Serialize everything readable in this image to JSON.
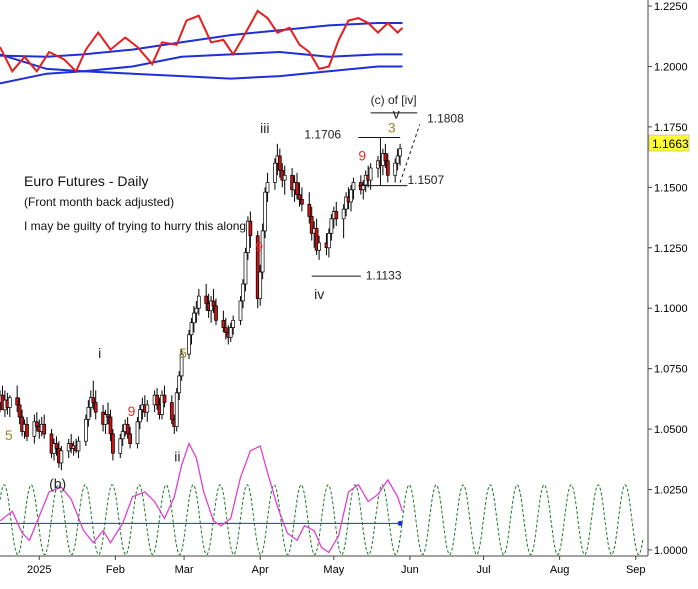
{
  "chart_data": {
    "type": "candlestick",
    "title": "Euro Futures - Daily",
    "subtitle": "(Front month back adjusted)",
    "comment": "I may be guilty of trying to hurry this along",
    "last_price": "1.1663",
    "y_ticks": [
      "1.2250",
      "1.2000",
      "1.1750",
      "1.1500",
      "1.1250",
      "1.1000",
      "1.0750",
      "1.0500",
      "1.0250",
      "1.0000"
    ],
    "y_tick_values": [
      1.225,
      1.2,
      1.175,
      1.15,
      1.125,
      1.1,
      1.075,
      1.05,
      1.025,
      1.0
    ],
    "ylim": [
      0.9975,
      1.2275
    ],
    "x_ticks": [
      "2025",
      "Feb",
      "Mar",
      "Apr",
      "May",
      "Jun",
      "Jul",
      "Aug",
      "Sep"
    ],
    "x_tick_days": [
      2,
      33,
      61,
      92,
      122,
      153,
      183,
      214,
      245
    ],
    "x_range_days": [
      -14,
      250
    ],
    "grid": false,
    "candles": [
      [
        -14,
        1.061,
        1.066,
        1.057,
        1.064
      ],
      [
        -13,
        1.064,
        1.068,
        1.06,
        1.058
      ],
      [
        -12,
        1.058,
        1.066,
        1.055,
        1.062
      ],
      [
        -11,
        1.062,
        1.065,
        1.056,
        1.059
      ],
      [
        -10,
        1.059,
        1.064,
        1.055,
        1.063
      ],
      [
        -7,
        1.063,
        1.068,
        1.057,
        1.06
      ],
      [
        -6,
        1.06,
        1.063,
        1.052,
        1.055
      ],
      [
        -5,
        1.055,
        1.058,
        1.047,
        1.049
      ],
      [
        -4,
        1.049,
        1.054,
        1.046,
        1.052
      ],
      [
        -3,
        1.052,
        1.055,
        1.045,
        1.047
      ],
      [
        0,
        1.047,
        1.056,
        1.044,
        1.053
      ],
      [
        1,
        1.053,
        1.057,
        1.049,
        1.051
      ],
      [
        2,
        1.051,
        1.054,
        1.046,
        1.049
      ],
      [
        3,
        1.049,
        1.055,
        1.047,
        1.052
      ],
      [
        4,
        1.052,
        1.056,
        1.046,
        1.048
      ],
      [
        7,
        1.048,
        1.05,
        1.038,
        1.04
      ],
      [
        8,
        1.04,
        1.046,
        1.037,
        1.044
      ],
      [
        9,
        1.044,
        1.047,
        1.039,
        1.042
      ],
      [
        10,
        1.042,
        1.045,
        1.034,
        1.036
      ],
      [
        11,
        1.036,
        1.043,
        1.033,
        1.041
      ],
      [
        14,
        1.041,
        1.046,
        1.038,
        1.044
      ],
      [
        15,
        1.044,
        1.048,
        1.04,
        1.042
      ],
      [
        16,
        1.042,
        1.045,
        1.039,
        1.043
      ],
      [
        17,
        1.043,
        1.046,
        1.04,
        1.041
      ],
      [
        18,
        1.041,
        1.047,
        1.038,
        1.045
      ],
      [
        21,
        1.045,
        1.056,
        1.043,
        1.054
      ],
      [
        22,
        1.054,
        1.062,
        1.051,
        1.059
      ],
      [
        23,
        1.059,
        1.066,
        1.055,
        1.063
      ],
      [
        24,
        1.063,
        1.07,
        1.058,
        1.061
      ],
      [
        25,
        1.061,
        1.066,
        1.054,
        1.057
      ],
      [
        28,
        1.057,
        1.06,
        1.049,
        1.052
      ],
      [
        29,
        1.052,
        1.058,
        1.048,
        1.056
      ],
      [
        30,
        1.056,
        1.061,
        1.052,
        1.055
      ],
      [
        31,
        1.055,
        1.058,
        1.045,
        1.048
      ],
      [
        32,
        1.048,
        1.05,
        1.037,
        1.04
      ],
      [
        35,
        1.04,
        1.048,
        1.038,
        1.046
      ],
      [
        36,
        1.046,
        1.052,
        1.043,
        1.049
      ],
      [
        37,
        1.049,
        1.054,
        1.047,
        1.052
      ],
      [
        38,
        1.052,
        1.055,
        1.046,
        1.048
      ],
      [
        39,
        1.048,
        1.051,
        1.042,
        1.044
      ],
      [
        42,
        1.044,
        1.055,
        1.042,
        1.053
      ],
      [
        43,
        1.053,
        1.06,
        1.05,
        1.058
      ],
      [
        44,
        1.058,
        1.063,
        1.054,
        1.06
      ],
      [
        45,
        1.06,
        1.064,
        1.055,
        1.057
      ],
      [
        46,
        1.057,
        1.062,
        1.053,
        1.06
      ],
      [
        49,
        1.06,
        1.066,
        1.057,
        1.064
      ],
      [
        50,
        1.064,
        1.067,
        1.058,
        1.06
      ],
      [
        51,
        1.06,
        1.063,
        1.054,
        1.056
      ],
      [
        52,
        1.056,
        1.066,
        1.054,
        1.064
      ],
      [
        53,
        1.064,
        1.068,
        1.059,
        1.061
      ],
      [
        56,
        1.061,
        1.064,
        1.052,
        1.054
      ],
      [
        57,
        1.054,
        1.056,
        1.048,
        1.051
      ],
      [
        58,
        1.051,
        1.067,
        1.049,
        1.065
      ],
      [
        59,
        1.065,
        1.074,
        1.062,
        1.072
      ],
      [
        60,
        1.072,
        1.083,
        1.07,
        1.081
      ],
      [
        63,
        1.081,
        1.091,
        1.079,
        1.089
      ],
      [
        64,
        1.089,
        1.096,
        1.085,
        1.094
      ],
      [
        65,
        1.094,
        1.101,
        1.09,
        1.098
      ],
      [
        66,
        1.098,
        1.103,
        1.094,
        1.1
      ],
      [
        67,
        1.1,
        1.108,
        1.097,
        1.105
      ],
      [
        70,
        1.105,
        1.11,
        1.099,
        1.102
      ],
      [
        71,
        1.102,
        1.106,
        1.096,
        1.099
      ],
      [
        72,
        1.099,
        1.105,
        1.094,
        1.103
      ],
      [
        73,
        1.103,
        1.108,
        1.098,
        1.101
      ],
      [
        74,
        1.101,
        1.104,
        1.093,
        1.095
      ],
      [
        77,
        1.095,
        1.099,
        1.09,
        1.092
      ],
      [
        78,
        1.092,
        1.096,
        1.087,
        1.09
      ],
      [
        79,
        1.09,
        1.093,
        1.085,
        1.088
      ],
      [
        80,
        1.088,
        1.094,
        1.086,
        1.092
      ],
      [
        81,
        1.092,
        1.097,
        1.089,
        1.095
      ],
      [
        84,
        1.095,
        1.105,
        1.093,
        1.103
      ],
      [
        85,
        1.103,
        1.112,
        1.1,
        1.11
      ],
      [
        86,
        1.11,
        1.125,
        1.107,
        1.123
      ],
      [
        87,
        1.123,
        1.138,
        1.12,
        1.136
      ],
      [
        88,
        1.136,
        1.14,
        1.125,
        1.13
      ],
      [
        91,
        1.13,
        1.132,
        1.1,
        1.104
      ],
      [
        92,
        1.104,
        1.118,
        1.101,
        1.115
      ],
      [
        93,
        1.115,
        1.135,
        1.112,
        1.132
      ],
      [
        94,
        1.132,
        1.15,
        1.129,
        1.148
      ],
      [
        95,
        1.148,
        1.156,
        1.144,
        1.152
      ],
      [
        98,
        1.152,
        1.162,
        1.149,
        1.16
      ],
      [
        99,
        1.16,
        1.168,
        1.155,
        1.163
      ],
      [
        100,
        1.163,
        1.166,
        1.154,
        1.157
      ],
      [
        101,
        1.157,
        1.16,
        1.15,
        1.153
      ],
      [
        102,
        1.153,
        1.159,
        1.147,
        1.155
      ],
      [
        105,
        1.155,
        1.158,
        1.146,
        1.149
      ],
      [
        106,
        1.149,
        1.155,
        1.144,
        1.152
      ],
      [
        107,
        1.152,
        1.156,
        1.145,
        1.147
      ],
      [
        108,
        1.147,
        1.152,
        1.142,
        1.145
      ],
      [
        109,
        1.145,
        1.15,
        1.14,
        1.143
      ],
      [
        112,
        1.143,
        1.148,
        1.135,
        1.138
      ],
      [
        113,
        1.138,
        1.142,
        1.128,
        1.131
      ],
      [
        114,
        1.131,
        1.136,
        1.125,
        1.133
      ],
      [
        115,
        1.133,
        1.137,
        1.122,
        1.124
      ],
      [
        116,
        1.124,
        1.13,
        1.12,
        1.127
      ],
      [
        119,
        1.127,
        1.131,
        1.122,
        1.125
      ],
      [
        120,
        1.125,
        1.133,
        1.121,
        1.131
      ],
      [
        121,
        1.131,
        1.139,
        1.128,
        1.137
      ],
      [
        122,
        1.137,
        1.142,
        1.133,
        1.14
      ],
      [
        123,
        1.14,
        1.144,
        1.134,
        1.137
      ],
      [
        126,
        1.137,
        1.143,
        1.129,
        1.141
      ],
      [
        127,
        1.141,
        1.148,
        1.138,
        1.146
      ],
      [
        128,
        1.146,
        1.15,
        1.141,
        1.144
      ],
      [
        129,
        1.144,
        1.151,
        1.14,
        1.149
      ],
      [
        130,
        1.149,
        1.154,
        1.145,
        1.152
      ],
      [
        133,
        1.152,
        1.155,
        1.147,
        1.149
      ],
      [
        134,
        1.149,
        1.153,
        1.145,
        1.151
      ],
      [
        135,
        1.151,
        1.157,
        1.148,
        1.155
      ],
      [
        136,
        1.155,
        1.159,
        1.15,
        1.153
      ],
      [
        137,
        1.153,
        1.16,
        1.149,
        1.158
      ],
      [
        140,
        1.158,
        1.163,
        1.154,
        1.161
      ],
      [
        141,
        1.161,
        1.165,
        1.156,
        1.159
      ],
      [
        142,
        1.159,
        1.166,
        1.155,
        1.164
      ],
      [
        143,
        1.164,
        1.168,
        1.158,
        1.161
      ],
      [
        144,
        1.161,
        1.164,
        1.152,
        1.155
      ],
      [
        147,
        1.155,
        1.162,
        1.152,
        1.16
      ],
      [
        148,
        1.16,
        1.166,
        1.157,
        1.163
      ],
      [
        149,
        1.163,
        1.168,
        1.159,
        1.166
      ]
    ],
    "upper_line": [
      [
        -14,
        1.2045
      ],
      [
        5,
        1.204
      ],
      [
        20,
        1.205
      ],
      [
        40,
        1.207
      ],
      [
        60,
        1.21
      ],
      [
        80,
        1.213
      ],
      [
        100,
        1.215
      ],
      [
        120,
        1.217
      ],
      [
        140,
        1.218
      ],
      [
        150,
        1.218
      ]
    ],
    "middle_line": [
      [
        -14,
        1.205
      ],
      [
        5,
        1.199
      ],
      [
        20,
        1.198
      ],
      [
        40,
        1.197
      ],
      [
        60,
        1.196
      ],
      [
        80,
        1.195
      ],
      [
        100,
        1.196
      ],
      [
        120,
        1.198
      ],
      [
        140,
        1.2
      ],
      [
        150,
        1.2
      ]
    ],
    "lower_line": [
      [
        -14,
        1.193
      ],
      [
        5,
        1.197
      ],
      [
        20,
        1.198
      ],
      [
        40,
        1.2
      ],
      [
        60,
        1.204
      ],
      [
        80,
        1.205
      ],
      [
        100,
        1.206
      ],
      [
        120,
        1.204
      ],
      [
        140,
        1.205
      ],
      [
        150,
        1.205
      ]
    ],
    "red_line": [
      [
        -14,
        1.208
      ],
      [
        -9,
        1.198
      ],
      [
        -4,
        1.204
      ],
      [
        1,
        1.198
      ],
      [
        6,
        1.206
      ],
      [
        12,
        1.203
      ],
      [
        17,
        1.198
      ],
      [
        21,
        1.207
      ],
      [
        26,
        1.214
      ],
      [
        31,
        1.207
      ],
      [
        37,
        1.212
      ],
      [
        42,
        1.208
      ],
      [
        48,
        1.201
      ],
      [
        52,
        1.21
      ],
      [
        58,
        1.209
      ],
      [
        62,
        1.219
      ],
      [
        67,
        1.221
      ],
      [
        72,
        1.21
      ],
      [
        77,
        1.211
      ],
      [
        81,
        1.205
      ],
      [
        85,
        1.212
      ],
      [
        91,
        1.223
      ],
      [
        95,
        1.22
      ],
      [
        99,
        1.214
      ],
      [
        104,
        1.216
      ],
      [
        108,
        1.209
      ],
      [
        112,
        1.206
      ],
      [
        116,
        1.199
      ],
      [
        120,
        1.2
      ],
      [
        124,
        1.211
      ],
      [
        128,
        1.219
      ],
      [
        132,
        1.22
      ],
      [
        136,
        1.218
      ],
      [
        140,
        1.214
      ],
      [
        144,
        1.218
      ],
      [
        148,
        1.214
      ],
      [
        150,
        1.216
      ]
    ],
    "osc_magenta": [
      [
        -14,
        1.012
      ],
      [
        -9,
        1.016
      ],
      [
        -5,
        1.007
      ],
      [
        -2,
        1.004
      ],
      [
        2,
        1.014
      ],
      [
        6,
        1.024
      ],
      [
        11,
        1.026
      ],
      [
        15,
        1.021
      ],
      [
        20,
        1.008
      ],
      [
        24,
        1.003
      ],
      [
        28,
        1.008
      ],
      [
        31,
        1.003
      ],
      [
        36,
        1.011
      ],
      [
        40,
        1.022
      ],
      [
        45,
        1.024
      ],
      [
        49,
        1.02
      ],
      [
        53,
        1.013
      ],
      [
        57,
        1.022
      ],
      [
        60,
        1.035
      ],
      [
        63,
        1.044
      ],
      [
        66,
        1.038
      ],
      [
        69,
        1.024
      ],
      [
        73,
        1.012
      ],
      [
        76,
        1.01
      ],
      [
        80,
        1.013
      ],
      [
        84,
        1.03
      ],
      [
        88,
        1.041
      ],
      [
        92,
        1.043
      ],
      [
        95,
        1.032
      ],
      [
        99,
        1.018
      ],
      [
        103,
        1.007
      ],
      [
        107,
        1.004
      ],
      [
        110,
        1.01
      ],
      [
        114,
        1.008
      ],
      [
        117,
        1.001
      ],
      [
        120,
        0.999
      ],
      [
        124,
        1.006
      ],
      [
        128,
        1.024
      ],
      [
        132,
        1.027
      ],
      [
        136,
        1.02
      ],
      [
        140,
        1.023
      ],
      [
        144,
        1.029
      ],
      [
        148,
        1.022
      ],
      [
        150,
        1.016
      ]
    ],
    "baseline": 1.011,
    "cycle": {
      "period": 11,
      "mid": 1.0125,
      "amplitude": 0.0145,
      "start": -14,
      "end": 248
    },
    "annotations": [
      {
        "text": "(c) of [iv]",
        "x": 137,
        "y": 1.1845,
        "color": "#222222"
      },
      {
        "text": "v",
        "x": 146,
        "y": 1.1785,
        "color": "#222222"
      },
      {
        "text": "1.1808",
        "x": 160,
        "y": 1.1768,
        "color": "#222222"
      },
      {
        "text": "iii",
        "x": 92,
        "y": 1.1725,
        "color": "#222222"
      },
      {
        "text": "1.1706",
        "x": 110,
        "y": 1.1702,
        "color": "#222222"
      },
      {
        "text": "3",
        "x": 144,
        "y": 1.1726,
        "color": "#9a8a2a"
      },
      {
        "text": "9",
        "x": 132,
        "y": 1.1612,
        "color": "#e52b2b"
      },
      {
        "text": "1.1507",
        "x": 152,
        "y": 1.1514,
        "color": "#222222"
      },
      {
        "text": "9",
        "x": 90,
        "y": 1.1235,
        "color": "#e52b2b"
      },
      {
        "text": "1.1133",
        "x": 135,
        "y": 1.1118,
        "color": "#222222"
      },
      {
        "text": "iv",
        "x": 114,
        "y": 1.1038,
        "color": "#222222"
      },
      {
        "text": "5",
        "x": 59,
        "y": 1.0795,
        "color": "#9a8a2a"
      },
      {
        "text": "i",
        "x": 26,
        "y": 1.0795,
        "color": "#222222"
      },
      {
        "text": "9",
        "x": 38,
        "y": 1.0555,
        "color": "#e52b2b"
      },
      {
        "text": "5",
        "x": -12,
        "y": 1.0455,
        "color": "#9a8a2a"
      },
      {
        "text": "ii",
        "x": 57,
        "y": 1.0365,
        "color": "#222222"
      },
      {
        "text": "(b)",
        "x": 6,
        "y": 1.0255,
        "color": "#222222"
      }
    ],
    "hlines": [
      {
        "x1": 137,
        "x2": 156,
        "y": 1.1808
      },
      {
        "x1": 132,
        "x2": 149,
        "y": 1.1706
      },
      {
        "x1": 132,
        "x2": 152,
        "y": 1.1507
      },
      {
        "x1": 113,
        "x2": 133,
        "y": 1.1133
      }
    ]
  }
}
